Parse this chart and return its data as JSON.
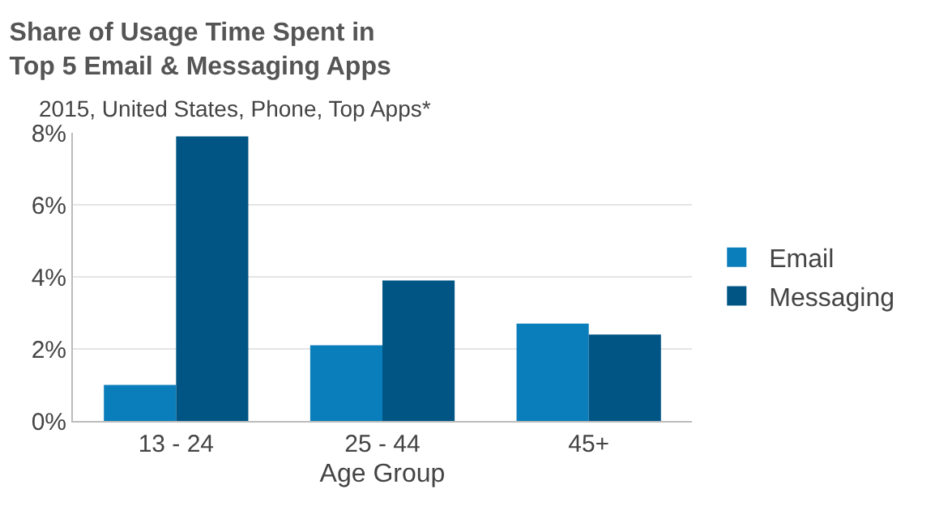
{
  "chart_data": {
    "type": "bar",
    "title": "Share of Usage Time Spent in\nTop 5 Email & Messaging Apps",
    "subtitle": "2015, United States, Phone, Top Apps*",
    "xlabel": "Age Group",
    "categories": [
      "13 - 24",
      "25 - 44",
      "45+"
    ],
    "series": [
      {
        "name": "Email",
        "color": "#0a7dbb",
        "values": [
          1.0,
          2.1,
          2.7
        ]
      },
      {
        "name": "Messaging",
        "color": "#005584",
        "values": [
          7.9,
          3.9,
          2.4
        ]
      }
    ],
    "ylim": [
      0,
      8
    ],
    "yticks": [
      {
        "value": 0,
        "label": "0%"
      },
      {
        "value": 2,
        "label": "2%"
      },
      {
        "value": 4,
        "label": "4%"
      },
      {
        "value": 6,
        "label": "6%"
      },
      {
        "value": 8,
        "label": "8%"
      }
    ],
    "grid": "y",
    "legend": "right"
  }
}
